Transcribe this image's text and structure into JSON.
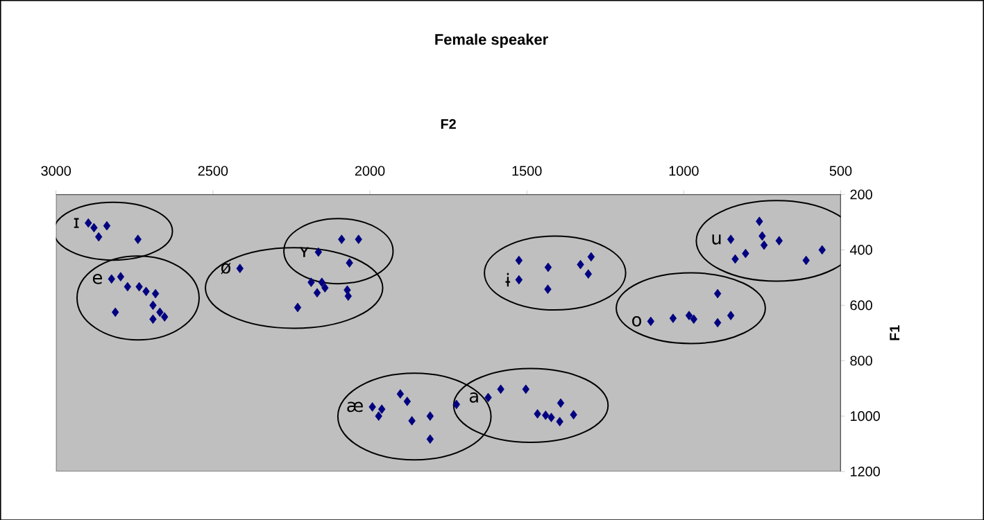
{
  "chart_data": {
    "type": "scatter",
    "title": "Female speaker",
    "xlabel": "F2",
    "ylabel": "F1",
    "xlim": [
      3000,
      500
    ],
    "xticks": [
      3000,
      2500,
      2000,
      1500,
      1000,
      500
    ],
    "ylim": [
      1200,
      200
    ],
    "yticks": [
      200,
      400,
      600,
      800,
      1000,
      1200
    ],
    "marker": "diamond",
    "series": [
      {
        "name": "ɪ",
        "color": "#000080",
        "x": [
          2897,
          2879,
          2864,
          2838,
          2739
        ],
        "values": [
          303,
          320,
          353,
          313,
          362
        ]
      },
      {
        "name": "e",
        "color": "#000080",
        "x": [
          2823,
          2794,
          2772,
          2735,
          2713,
          2683,
          2691,
          2669,
          2691,
          2654,
          2811
        ],
        "values": [
          505,
          497,
          533,
          533,
          550,
          558,
          600,
          625,
          650,
          642,
          625
        ]
      },
      {
        "name": "ʏ",
        "color": "#000080",
        "x": [
          2164,
          2090,
          2036,
          2065
        ],
        "values": [
          408,
          362,
          362,
          447
        ]
      },
      {
        "name": "ø",
        "color": "#000080",
        "x": [
          2414,
          2230,
          2187,
          2153,
          2168,
          2143,
          2072,
          2069
        ],
        "values": [
          467,
          608,
          517,
          517,
          555,
          537,
          545,
          567
        ]
      },
      {
        "name": "æ",
        "color": "#000080",
        "x": [
          1992,
          1962,
          1972,
          1903,
          1881,
          1866,
          1808,
          1808,
          1724
        ],
        "values": [
          967,
          975,
          1000,
          920,
          947,
          1017,
          1000,
          1083,
          958
        ]
      },
      {
        "name": "a",
        "color": "#000080",
        "x": [
          1623,
          1583,
          1503,
          1466,
          1440,
          1422,
          1395,
          1392,
          1351
        ],
        "values": [
          933,
          903,
          903,
          992,
          997,
          1005,
          1020,
          953,
          995
        ]
      },
      {
        "name": "ɨ",
        "color": "#000080",
        "x": [
          1525,
          1525,
          1432,
          1433,
          1329,
          1295,
          1304
        ],
        "values": [
          438,
          508,
          463,
          542,
          453,
          425,
          487
        ]
      },
      {
        "name": "o",
        "color": "#000080",
        "x": [
          1105,
          1034,
          983,
          968,
          892,
          892,
          850
        ],
        "values": [
          658,
          647,
          637,
          650,
          558,
          663,
          637
        ]
      },
      {
        "name": "u",
        "color": "#000080",
        "x": [
          850,
          836,
          803,
          759,
          750,
          744,
          696,
          610,
          559
        ],
        "values": [
          362,
          433,
          413,
          297,
          350,
          383,
          367,
          438,
          400
        ]
      }
    ]
  }
}
